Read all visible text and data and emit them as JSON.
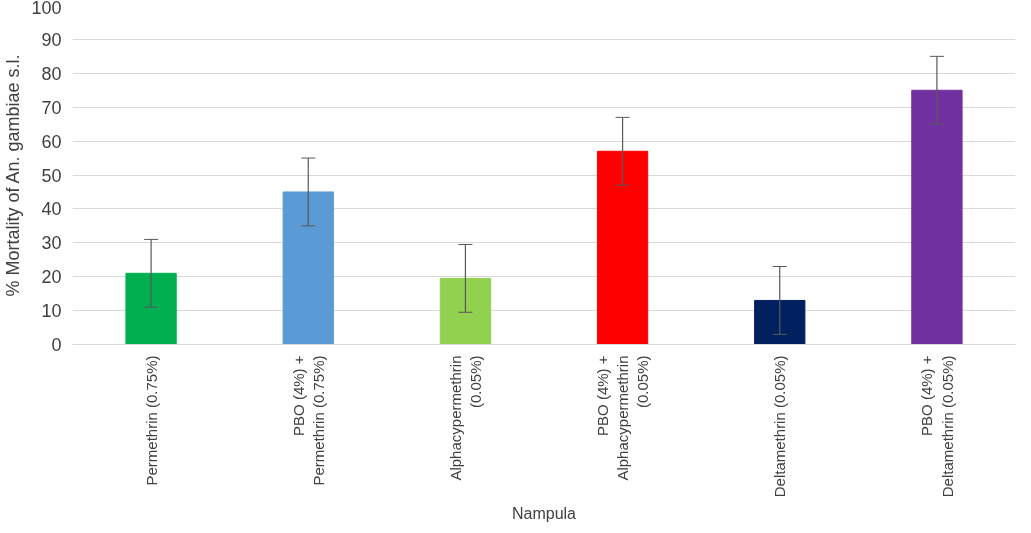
{
  "chart_data": {
    "type": "bar",
    "xlabel": "Nampula",
    "ylabel": "% Mortality of An. gambiae s.l.",
    "categories": [
      "Permethrin (0.75%)",
      "PBO (4%) + Permethrin (0.75%)",
      "Alphacypermethrin (0.05%)",
      "PBO (4%) + Alphacypermethrin (0.05%)",
      "Deltamethrin (0.05%)",
      "PBO (4%) + Deltamethrin (0.05%)"
    ],
    "values": [
      21,
      45,
      19.5,
      57,
      13,
      75
    ],
    "colors": [
      "#00b050",
      "#5b9bd5",
      "#92d050",
      "#ff0000",
      "#002060",
      "#7030a0"
    ],
    "errors": [
      10,
      10,
      10,
      10,
      10,
      10
    ],
    "ylim": [
      0,
      100
    ],
    "yticks": [
      0,
      10,
      20,
      30,
      40,
      50,
      60,
      70,
      80,
      90,
      100
    ],
    "grid": "y"
  }
}
